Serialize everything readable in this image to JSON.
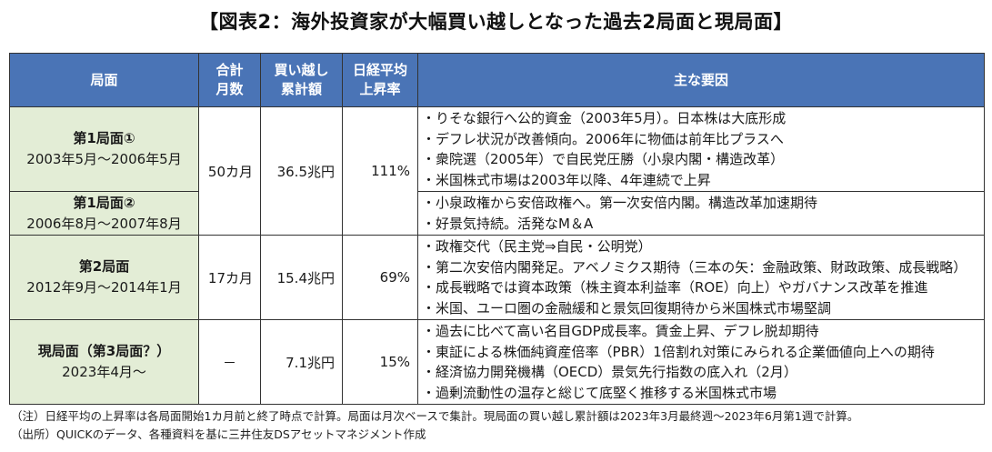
{
  "title": "【図表2：海外投資家が大幅買い越しとなった過去2局面と現局面】",
  "headers": {
    "phase": "局面",
    "months_line1": "合計",
    "months_line2": "月数",
    "net_line1": "買い越し",
    "net_line2": "累計額",
    "nikkei_line1": "日経平均",
    "nikkei_line2": "上昇率",
    "factors": "主な要因"
  },
  "rows": [
    {
      "name": "第1局面①",
      "period": "2003年5月～2006年5月",
      "factors": [
        "・りそな銀行へ公的資金（2003年5月）。日本株は大底形成",
        "・デフレ状況が改善傾向。2006年に物価は前年比プラスへ",
        "・衆院選（2005年）で自民党圧勝（小泉内閣・構造改革）",
        "・米国株式市場は2003年以降、4年連続で上昇"
      ]
    },
    {
      "name": "第1局面②",
      "period": "2006年8月～2007年8月",
      "factors": [
        "・小泉政権から安倍政権へ。第一次安倍内閣。構造改革加速期待",
        "・好景気持続。活発なM＆A"
      ]
    },
    {
      "name": "第2局面",
      "period": "2012年9月～2014年1月",
      "months": "17カ月",
      "net": "15.4兆円",
      "rise": "69%",
      "factors": [
        "・政権交代（民主党⇒自民・公明党）",
        "・第二次安倍内閣発足。アベノミクス期待（三本の矢：金融政策、財政政策、成長戦略）",
        "・成長戦略では資本政策（株主資本利益率（ROE）向上）やガバナンス改革を推進",
        "・米国、ユーロ圏の金融緩和と景気回復期待から米国株式市場堅調"
      ]
    },
    {
      "name": "現局面（第3局面？）",
      "period": "2023年4月～",
      "months": "－",
      "net": "7.1兆円",
      "rise": "15%",
      "factors": [
        "・過去に比べて高い名目GDP成長率。賃金上昇、デフレ脱却期待",
        "・東証による株価純資産倍率（PBR）1倍割れ対策にみられる企業価値向上への期待",
        "・経済協力開発機構（OECD）景気先行指数の底入れ（2月）",
        "・過剰流動性の温存と総じて底堅く推移する米国株式市場"
      ]
    }
  ],
  "phase1_shared": {
    "months": "50カ月",
    "net": "36.5兆円",
    "rise": "111%"
  },
  "notes": [
    "（注）日経平均の上昇率は各局面開始1カ月前と終了時点で計算。局面は月次ベースで集計。現局面の買い越し累計額は2023年3月最終週～2023年6月第1週で計算。",
    "（出所）QUICKのデータ、各種資料を基に三井住友DSアセットマネジメント作成"
  ],
  "colors": {
    "header_bg": "#4a74b6",
    "phase_bg": "#e3edd6"
  }
}
